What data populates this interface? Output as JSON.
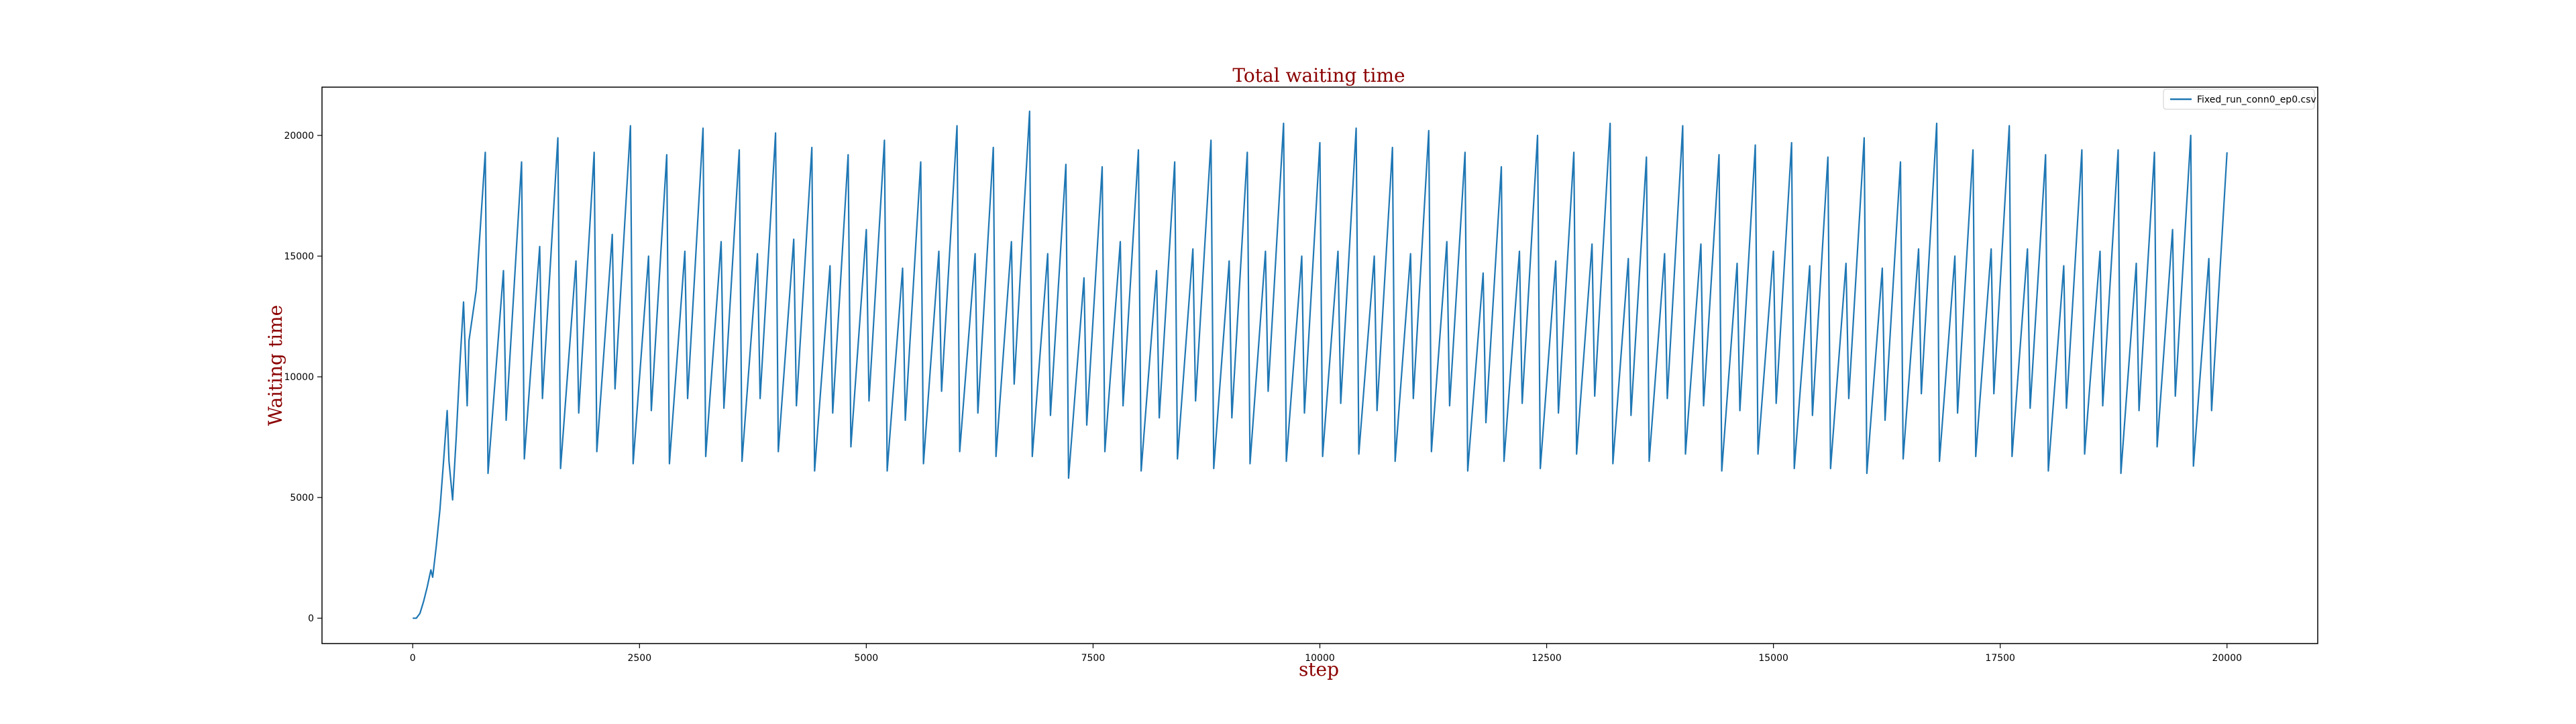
{
  "chart_data": {
    "type": "line",
    "title": "Total waiting time",
    "xlabel": "step",
    "ylabel": "Waiting time",
    "xlim": [
      -1000,
      21000
    ],
    "ylim": [
      -1050,
      22000
    ],
    "x_ticks": [
      0,
      2500,
      5000,
      7500,
      10000,
      12500,
      15000,
      17500,
      20000
    ],
    "y_ticks": [
      0,
      5000,
      10000,
      15000,
      20000
    ],
    "grid": false,
    "legend_position": "top-right",
    "series": [
      {
        "name": "Fixed_run_conn0_ep0.csv",
        "color": "#1f77b4",
        "x": [
          0,
          40,
          80,
          120,
          160,
          200,
          220,
          260,
          300,
          340,
          380,
          400,
          440,
          480,
          520,
          560,
          600,
          620,
          700,
          800,
          830,
          1000,
          1030,
          1200,
          1230,
          1400,
          1430,
          1600,
          1630,
          1800,
          1830,
          2000,
          2030,
          2200,
          2230,
          2400,
          2430,
          2600,
          2630,
          2800,
          2830,
          3000,
          3030,
          3200,
          3230,
          3400,
          3430,
          3600,
          3630,
          3800,
          3830,
          4000,
          4030,
          4200,
          4230,
          4400,
          4430,
          4600,
          4630,
          4800,
          4830,
          5000,
          5030,
          5200,
          5230,
          5400,
          5430,
          5600,
          5630,
          5800,
          5830,
          6000,
          6030,
          6200,
          6230,
          6400,
          6430,
          6600,
          6630,
          6800,
          6830,
          7000,
          7030,
          7200,
          7230,
          7400,
          7430,
          7600,
          7630,
          7800,
          7830,
          8000,
          8030,
          8200,
          8230,
          8400,
          8430,
          8600,
          8630,
          8800,
          8830,
          9000,
          9030,
          9200,
          9230,
          9400,
          9430,
          9600,
          9630,
          9800,
          9830,
          10000,
          10030,
          10200,
          10230,
          10400,
          10430,
          10600,
          10630,
          10800,
          10830,
          11000,
          11030,
          11200,
          11230,
          11400,
          11430,
          11600,
          11630,
          11800,
          11830,
          12000,
          12030,
          12200,
          12230,
          12400,
          12430,
          12600,
          12630,
          12800,
          12830,
          13000,
          13030,
          13200,
          13230,
          13400,
          13430,
          13600,
          13630,
          13800,
          13830,
          14000,
          14030,
          14200,
          14230,
          14400,
          14430,
          14600,
          14630,
          14800,
          14830,
          15000,
          15030,
          15200,
          15230,
          15400,
          15430,
          15600,
          15630,
          15800,
          15830,
          16000,
          16030,
          16200,
          16230,
          16400,
          16430,
          16600,
          16630,
          16800,
          16830,
          17000,
          17030,
          17200,
          17230,
          17400,
          17430,
          17600,
          17630,
          17800,
          17830,
          18000,
          18030,
          18200,
          18230,
          18400,
          18430,
          18600,
          18630,
          18800,
          18830,
          19000,
          19030,
          19200,
          19230,
          19400,
          19430,
          19600,
          19630,
          19800,
          19830,
          20000
        ],
        "y": [
          0,
          0,
          200,
          700,
          1300,
          2000,
          1700,
          3000,
          4500,
          6500,
          8600,
          6500,
          4900,
          7500,
          10500,
          13100,
          8800,
          11500,
          13600,
          19300,
          6000,
          14400,
          8200,
          18900,
          6600,
          15400,
          9100,
          19900,
          6200,
          14800,
          8500,
          19300,
          6900,
          15900,
          9500,
          20400,
          6400,
          15000,
          8600,
          19200,
          6400,
          15200,
          9100,
          20300,
          6700,
          15600,
          8700,
          19400,
          6500,
          15100,
          9100,
          20100,
          6900,
          15700,
          8800,
          19500,
          6100,
          14600,
          8500,
          19200,
          7100,
          16100,
          9000,
          19800,
          6100,
          14500,
          8200,
          18900,
          6400,
          15200,
          9400,
          20400,
          6900,
          15100,
          8500,
          19500,
          6700,
          15600,
          9700,
          21000,
          6700,
          15100,
          8400,
          18800,
          5800,
          14100,
          8000,
          18700,
          6900,
          15600,
          8800,
          19400,
          6100,
          14400,
          8300,
          18900,
          6600,
          15300,
          9000,
          19800,
          6200,
          14800,
          8300,
          19300,
          6400,
          15200,
          9400,
          20500,
          6500,
          15000,
          8500,
          19700,
          6700,
          15200,
          8900,
          20300,
          6800,
          15000,
          8600,
          19500,
          6500,
          15100,
          9100,
          20200,
          6900,
          15600,
          8800,
          19300,
          6100,
          14300,
          8100,
          18700,
          6500,
          15200,
          8900,
          20000,
          6200,
          14800,
          8500,
          19300,
          6800,
          15500,
          9200,
          20500,
          6400,
          14900,
          8400,
          19100,
          6500,
          15100,
          9100,
          20400,
          6800,
          15500,
          8800,
          19200,
          6100,
          14700,
          8600,
          19600,
          6800,
          15200,
          8900,
          19700,
          6200,
          14600,
          8400,
          19100,
          6200,
          14700,
          9100,
          19900,
          6000,
          14500,
          8200,
          18900,
          6600,
          15300,
          9300,
          20500,
          6500,
          15000,
          8500,
          19400,
          6700,
          15300,
          9300,
          20400,
          6700,
          15300,
          8700,
          19200,
          6100,
          14600,
          8700,
          19400,
          6800,
          15200,
          8800,
          19400,
          6000,
          14700,
          8600,
          19300,
          7100,
          16100,
          9200,
          20000,
          6300,
          14900,
          8600,
          19300
        ]
      }
    ]
  }
}
